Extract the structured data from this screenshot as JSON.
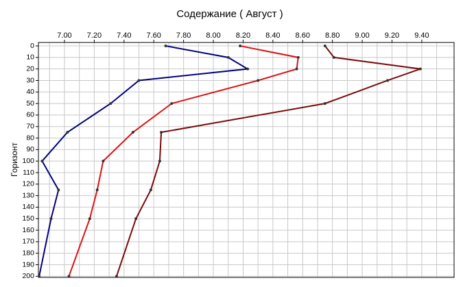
{
  "chart_data": {
    "type": "line",
    "title": "Содержание    ( Август )",
    "y_label": "Горизонт",
    "y": [
      0,
      10,
      20,
      30,
      50,
      75,
      100,
      125,
      150,
      200
    ],
    "series": [
      {
        "color": "#000080",
        "values": [
          7.68,
          8.1,
          8.23,
          7.5,
          7.31,
          7.02,
          6.85,
          6.96,
          6.91,
          6.83
        ]
      },
      {
        "color": "#dd1111",
        "values": [
          8.18,
          8.57,
          8.56,
          8.3,
          7.72,
          7.46,
          7.26,
          7.22,
          7.17,
          7.03
        ]
      },
      {
        "color": "#7a0a0a",
        "values": [
          8.75,
          8.81,
          9.39,
          9.17,
          8.75,
          7.65,
          7.64,
          7.58,
          7.48,
          7.35
        ]
      }
    ],
    "xlim": [
      6.825,
      9.617
    ],
    "ylim": [
      -3,
      201
    ],
    "y_inverted": true,
    "xticks": [
      {
        "value": 7.0,
        "label": "7.00"
      },
      {
        "value": 7.2,
        "label": "7.20"
      },
      {
        "value": 7.4,
        "label": "7.40"
      },
      {
        "value": 7.6,
        "label": "7.60"
      },
      {
        "value": 7.8,
        "label": "7.80"
      },
      {
        "value": 8.0,
        "label": "8.00"
      },
      {
        "value": 8.2,
        "label": "8.20"
      },
      {
        "value": 8.4,
        "label": "8.40"
      },
      {
        "value": 8.6,
        "label": "8.60"
      },
      {
        "value": 8.8,
        "label": "8.80"
      },
      {
        "value": 9.0,
        "label": "9.00"
      },
      {
        "value": 9.2,
        "label": "9.20"
      },
      {
        "value": 9.4,
        "label": "9.40"
      }
    ],
    "x_minor_ticks": [
      6.9,
      7.1,
      7.3,
      7.5,
      7.7,
      7.9,
      8.1,
      8.3,
      8.5,
      8.7,
      8.9,
      9.1,
      9.3,
      9.5
    ],
    "yticks": [
      0,
      10,
      20,
      30,
      40,
      50,
      60,
      70,
      80,
      90,
      100,
      110,
      120,
      130,
      140,
      150,
      160,
      170,
      180,
      190,
      200
    ],
    "grid": true
  }
}
